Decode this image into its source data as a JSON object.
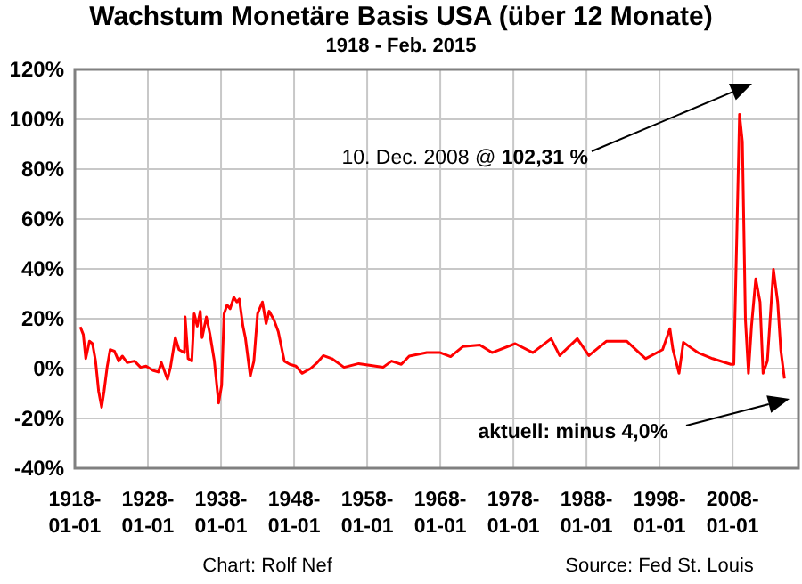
{
  "chart_data": {
    "type": "line",
    "title": "Wachstum Monetäre Basis USA (über 12 Monate)",
    "subtitle": "1918 -  Feb. 2015",
    "grid": true,
    "marker": "none",
    "line_style": "solid",
    "xlim": [
      "1918-01-01",
      "2017-01-01"
    ],
    "xticks": [
      "1918-01-01",
      "1928-01-01",
      "1938-01-01",
      "1948-01-01",
      "1958-01-01",
      "1968-01-01",
      "1978-01-01",
      "1988-01-01",
      "1998-01-01",
      "2008-01-01"
    ],
    "ylim": [
      -40,
      120
    ],
    "yticks": [
      {
        "value": -40,
        "label": "-40%"
      },
      {
        "value": -20,
        "label": "-20%"
      },
      {
        "value": 0,
        "label": "0%"
      },
      {
        "value": 20,
        "label": "20%"
      },
      {
        "value": 40,
        "label": "40%"
      },
      {
        "value": 60,
        "label": "60%"
      },
      {
        "value": 80,
        "label": "80%"
      },
      {
        "value": 100,
        "label": "100%"
      },
      {
        "value": 120,
        "label": "120%"
      }
    ],
    "x": [
      "1918-10",
      "1919-03",
      "1919-07",
      "1920-01",
      "1920-06",
      "1920-11",
      "1921-04",
      "1921-09",
      "1922-01",
      "1922-06",
      "1922-11",
      "1923-06",
      "1924-01",
      "1924-07",
      "1925-03",
      "1926-03",
      "1927-01",
      "1927-10",
      "1928-09",
      "1929-06",
      "1929-11",
      "1930-09",
      "1931-02",
      "1931-10",
      "1932-04",
      "1933-01",
      "1933-02",
      "1933-07",
      "1934-01",
      "1934-05",
      "1934-10",
      "1935-03",
      "1935-06",
      "1936-01",
      "1936-07",
      "1937-02",
      "1937-09",
      "1938-02",
      "1938-06",
      "1938-11",
      "1939-04",
      "1939-10",
      "1940-03",
      "1940-07",
      "1941-01",
      "1941-05",
      "1942-01",
      "1942-07",
      "1943-01",
      "1943-09",
      "1944-03",
      "1944-08",
      "1945-04",
      "1945-11",
      "1946-09",
      "1947-06",
      "1948-04",
      "1949-02",
      "1950-04",
      "1951-03",
      "1952-01",
      "1953-03",
      "1954-11",
      "1956-11",
      "1960-03",
      "1961-05",
      "1962-09",
      "1963-10",
      "1966-03",
      "1968-01",
      "1969-06",
      "1971-02",
      "1973-06",
      "1975-02",
      "1978-04",
      "1980-09",
      "1983-03",
      "1984-05",
      "1986-10",
      "1988-05",
      "1990-10",
      "1993-07",
      "1996-02",
      "1998-06",
      "1999-06",
      "1999-11",
      "2000-09",
      "2001-04",
      "2002-02",
      "2003-04",
      "2005-04",
      "2007-10",
      "2008-03",
      "2008-08",
      "2008-12-10",
      "2009-05",
      "2009-10",
      "2010-03",
      "2010-08",
      "2011-03",
      "2011-10",
      "2012-03",
      "2012-10",
      "2013-08",
      "2014-03",
      "2014-08",
      "2015-02"
    ],
    "series": [
      {
        "color": "#ff0000",
        "values": [
          16.7,
          13.6,
          4,
          11,
          10,
          3,
          -9,
          -15.5,
          -9,
          0.5,
          7.6,
          7,
          3,
          5,
          2.4,
          3,
          0.5,
          1,
          -0.7,
          -1.4,
          2.4,
          -4.3,
          0.5,
          12.4,
          7.6,
          6.4,
          20.7,
          4,
          3,
          22,
          17,
          23,
          12.4,
          20.7,
          13.6,
          3,
          -13.8,
          -6.7,
          22,
          25.5,
          24,
          28.6,
          26.7,
          27.9,
          17,
          12.4,
          -3,
          3,
          22,
          26.7,
          18,
          23,
          19.5,
          14.8,
          3,
          1.7,
          1,
          -1.9,
          0,
          2.4,
          5.2,
          4,
          0.5,
          2,
          0.5,
          3,
          1.7,
          5,
          6.4,
          6.4,
          4.8,
          8.8,
          9.5,
          6.4,
          10,
          6.4,
          12,
          5.2,
          12,
          5.2,
          11,
          11,
          4,
          7.6,
          16,
          7.6,
          -1.9,
          10.5,
          8.8,
          6.4,
          4,
          1.7,
          1.7,
          55,
          102,
          91,
          19.5,
          -1.9,
          17,
          36,
          26.7,
          -1.9,
          3,
          39.8,
          26.7,
          7.6,
          -4
        ]
      }
    ],
    "annotations": [
      "10. Dec. 2008 @ 102,31 %",
      "aktuell: minus 4,0%",
      "Chart: Rolf Nef",
      "Source: Fed St. Louis"
    ]
  }
}
